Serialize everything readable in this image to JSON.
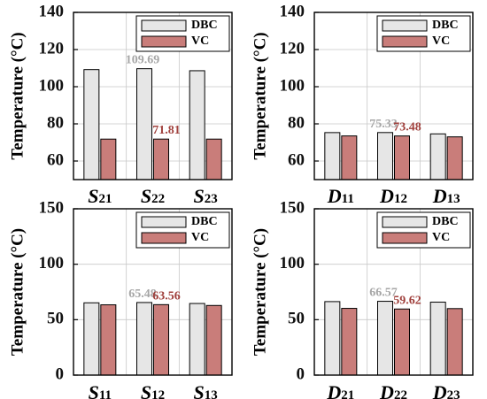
{
  "colors": {
    "dbc_fill": "#e6e6e6",
    "vc_fill": "#c97d7a",
    "dbc_annot": "#a6a6a6",
    "vc_annot": "#a0403c",
    "axis": "#000000",
    "grid": "#c8c8c8"
  },
  "chart_data": [
    {
      "type": "bar",
      "ylabel": "Temperature (°C)",
      "ylim": [
        50,
        140
      ],
      "yticks": [
        "60",
        "80",
        "100",
        "120",
        "140"
      ],
      "yticks_values": [
        60,
        80,
        100,
        120,
        140
      ],
      "grid": true,
      "legend": "top-right",
      "categories": [
        {
          "main": "S",
          "sub": "21"
        },
        {
          "main": "S",
          "sub": "22"
        },
        {
          "main": "S",
          "sub": "23"
        }
      ],
      "series": [
        {
          "name": "DBC",
          "values": [
            109.2,
            109.69,
            108.6
          ]
        },
        {
          "name": "VC",
          "values": [
            71.8,
            71.81,
            71.8
          ]
        }
      ],
      "annotations": [
        {
          "text": "109.69",
          "series": 0,
          "category": 1
        },
        {
          "text": "71.81",
          "series": 1,
          "category": 1
        }
      ]
    },
    {
      "type": "bar",
      "ylabel": "Temperature (°C)",
      "ylim": [
        50,
        140
      ],
      "yticks": [
        "60",
        "80",
        "100",
        "120",
        "140"
      ],
      "yticks_values": [
        60,
        80,
        100,
        120,
        140
      ],
      "grid": true,
      "legend": "top-right",
      "categories": [
        {
          "main": "D",
          "sub": "11"
        },
        {
          "main": "D",
          "sub": "12"
        },
        {
          "main": "D",
          "sub": "13"
        }
      ],
      "series": [
        {
          "name": "DBC",
          "values": [
            75.3,
            75.33,
            74.6
          ]
        },
        {
          "name": "VC",
          "values": [
            73.5,
            73.48,
            73.0
          ]
        }
      ],
      "annotations": [
        {
          "text": "75.33",
          "series": 0,
          "category": 1
        },
        {
          "text": "73.48",
          "series": 1,
          "category": 1
        }
      ]
    },
    {
      "type": "bar",
      "ylabel": "Temperature (°C)",
      "ylim": [
        0,
        150
      ],
      "yticks": [
        "0",
        "50",
        "100",
        "150"
      ],
      "yticks_values": [
        0,
        50,
        100,
        150
      ],
      "grid": true,
      "legend": "top-right",
      "categories": [
        {
          "main": "S",
          "sub": "11"
        },
        {
          "main": "S",
          "sub": "12"
        },
        {
          "main": "S",
          "sub": "13"
        }
      ],
      "series": [
        {
          "name": "DBC",
          "values": [
            65.2,
            65.48,
            64.6
          ]
        },
        {
          "name": "VC",
          "values": [
            63.4,
            63.56,
            62.8
          ]
        }
      ],
      "annotations": [
        {
          "text": "65.48",
          "series": 0,
          "category": 1
        },
        {
          "text": "63.56",
          "series": 1,
          "category": 1
        }
      ]
    },
    {
      "type": "bar",
      "ylabel": "Temperature (°C)",
      "ylim": [
        0,
        150
      ],
      "yticks": [
        "0",
        "50",
        "100",
        "150"
      ],
      "yticks_values": [
        0,
        50,
        100,
        150
      ],
      "grid": true,
      "legend": "top-right",
      "categories": [
        {
          "main": "D",
          "sub": "21"
        },
        {
          "main": "D",
          "sub": "22"
        },
        {
          "main": "D",
          "sub": "23"
        }
      ],
      "series": [
        {
          "name": "DBC",
          "values": [
            66.3,
            66.57,
            65.8
          ]
        },
        {
          "name": "VC",
          "values": [
            60.2,
            59.62,
            60.0
          ]
        }
      ],
      "annotations": [
        {
          "text": "66.57",
          "series": 0,
          "category": 1
        },
        {
          "text": "59.62",
          "series": 1,
          "category": 1
        }
      ]
    }
  ]
}
